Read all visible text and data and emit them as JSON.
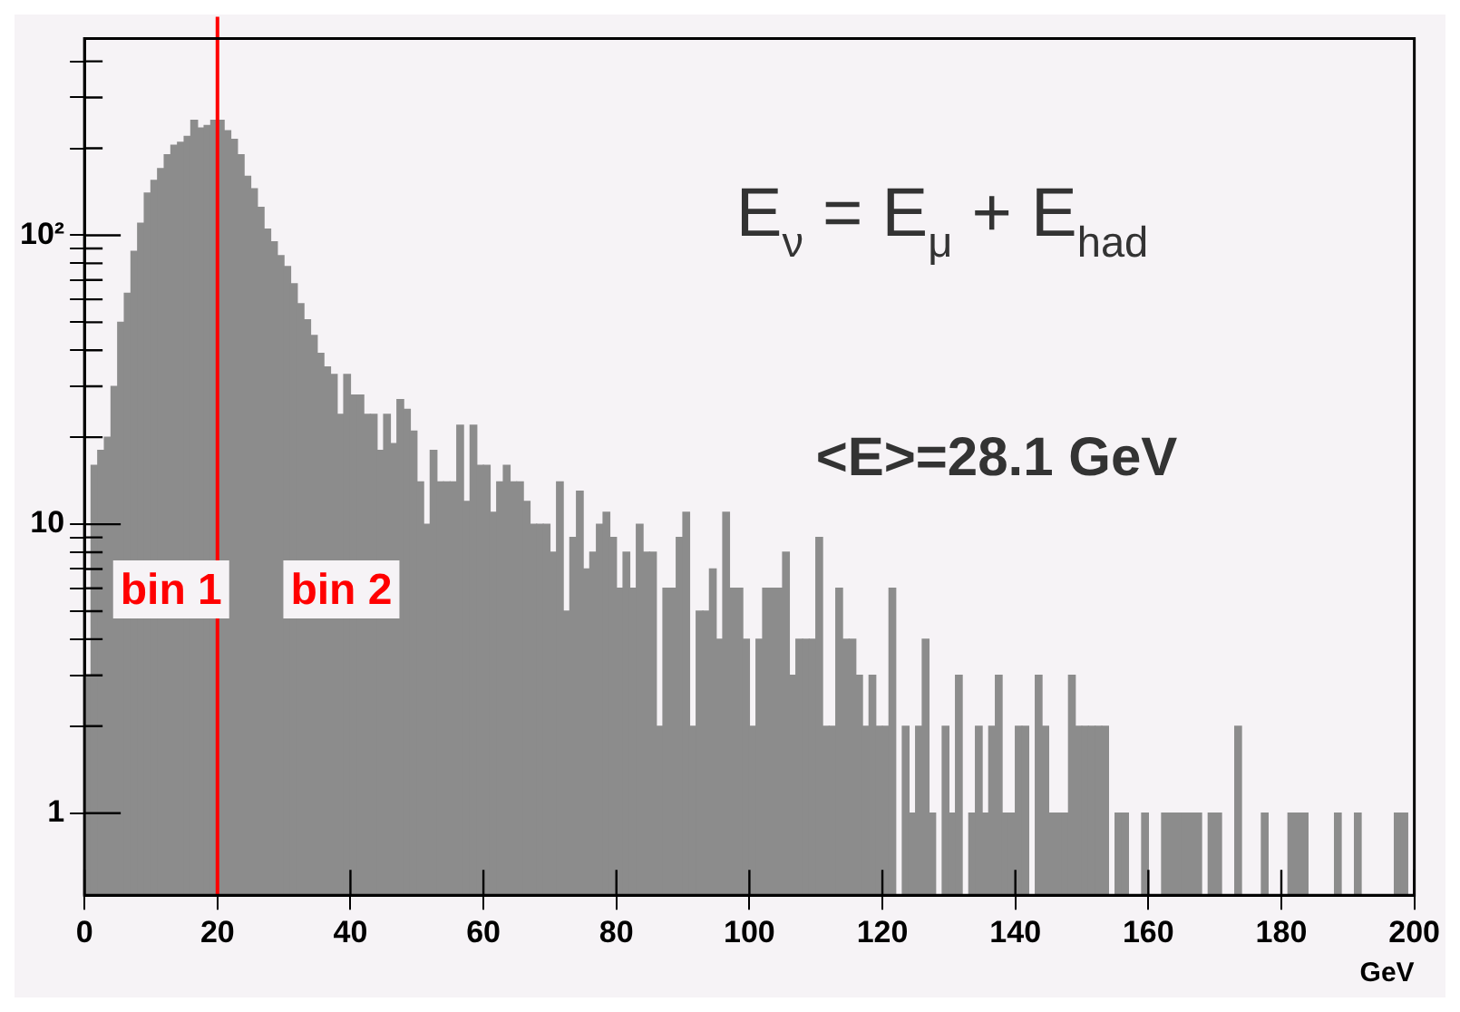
{
  "chart_data": {
    "type": "histogram",
    "xlabel": "GeV",
    "color": "#8c8c8c",
    "bins": [
      0,
      1,
      2,
      3,
      4,
      5,
      6,
      7,
      8,
      9,
      10,
      11,
      12,
      13,
      14,
      15,
      16,
      17,
      18,
      19,
      20,
      21,
      22,
      23,
      24,
      25,
      26,
      27,
      28,
      29,
      30,
      31,
      32,
      33,
      34,
      35,
      36,
      37,
      38,
      39,
      40,
      41,
      42,
      43,
      44,
      45,
      46,
      47,
      48,
      49,
      50,
      51,
      52,
      53,
      54,
      55,
      56,
      57,
      58,
      59,
      60,
      61,
      62,
      63,
      64,
      65,
      66,
      67,
      68,
      69,
      70,
      71,
      72,
      73,
      74,
      75,
      76,
      77,
      78,
      79,
      80,
      81,
      82,
      83,
      84,
      85,
      86,
      87,
      88,
      89,
      90,
      91,
      92,
      93,
      94,
      95,
      96,
      97,
      98,
      99,
      100,
      101,
      102,
      103,
      104,
      105,
      106,
      107,
      108,
      109,
      110,
      111,
      112,
      113,
      114,
      115,
      116,
      117,
      118,
      119,
      120,
      121,
      122,
      123,
      124,
      125,
      126,
      127,
      128,
      129,
      130,
      131,
      132,
      133,
      134,
      135,
      136,
      137,
      138,
      139,
      140,
      141,
      142,
      143,
      144,
      145,
      146,
      147,
      148,
      149,
      150,
      151,
      152,
      153,
      154,
      155,
      156,
      157,
      158,
      159,
      160,
      161,
      162,
      163,
      164,
      165,
      166,
      167,
      168,
      169,
      170,
      171,
      172,
      173,
      174,
      175,
      176,
      177,
      178,
      179,
      180,
      181,
      182,
      183,
      184,
      185,
      186,
      187,
      188,
      189,
      190,
      191,
      192,
      193,
      194,
      195,
      196,
      197,
      198,
      199,
      200
    ],
    "values": [
      3,
      16,
      18,
      20,
      30,
      50,
      63,
      88,
      110,
      140,
      155,
      170,
      190,
      205,
      210,
      220,
      250,
      235,
      240,
      250,
      250,
      230,
      215,
      190,
      160,
      145,
      125,
      105,
      95,
      85,
      78,
      68,
      58,
      51,
      45,
      39,
      35,
      33,
      24,
      33,
      28,
      28,
      24,
      24,
      18,
      24,
      19,
      27,
      25,
      21,
      14,
      10,
      18,
      14,
      14,
      14,
      22,
      12,
      22,
      16,
      16,
      11,
      14,
      16,
      14,
      14,
      12,
      10,
      10,
      10,
      8,
      14,
      5,
      9,
      13,
      7,
      8,
      10,
      11,
      9,
      6,
      8,
      6,
      10,
      8,
      8,
      2,
      6,
      6,
      9,
      11,
      2,
      5,
      5,
      7,
      4,
      11,
      6,
      6,
      4,
      2,
      4,
      6,
      6,
      6,
      8,
      3,
      4,
      4,
      4,
      9,
      2,
      2,
      6,
      4,
      4,
      3,
      2,
      3,
      2,
      2,
      6,
      null,
      2,
      1,
      2,
      4,
      1,
      null,
      2,
      1,
      3,
      null,
      1,
      2,
      1,
      2,
      3,
      1,
      1,
      2,
      2,
      null,
      3,
      2,
      1,
      1,
      1,
      3,
      2,
      2,
      2,
      2,
      2,
      null,
      1,
      1,
      null,
      null,
      1,
      null,
      null,
      1,
      1,
      1,
      1,
      1,
      1,
      null,
      1,
      1,
      null,
      null,
      2,
      null,
      null,
      null,
      1,
      null,
      null,
      null,
      1,
      1,
      1,
      null,
      null,
      null,
      null,
      1,
      null,
      null,
      1,
      null,
      null,
      null,
      null,
      null,
      1,
      1,
      null
    ],
    "xlim": [
      0,
      200
    ],
    "xticks": [
      0,
      20,
      40,
      60,
      80,
      100,
      120,
      140,
      160,
      180,
      200
    ],
    "log": "y",
    "ylim": [
      0.52,
      480
    ],
    "yticks": [
      1,
      {
        "value": 2,
        "label": null
      },
      {
        "value": 3,
        "label": null
      },
      {
        "value": 4,
        "label": null
      },
      {
        "value": 5,
        "label": null
      },
      {
        "value": 6,
        "label": null
      },
      {
        "value": 7,
        "label": null
      },
      {
        "value": 8,
        "label": null
      },
      {
        "value": 9,
        "label": null
      },
      10,
      {
        "value": 20,
        "label": null
      },
      {
        "value": 30,
        "label": null
      },
      {
        "value": 40,
        "label": null
      },
      {
        "value": 50,
        "label": null
      },
      {
        "value": 60,
        "label": null
      },
      {
        "value": 70,
        "label": null
      },
      {
        "value": 80,
        "label": null
      },
      {
        "value": 90,
        "label": null
      },
      {
        "value": 100,
        "label": "10²"
      },
      {
        "value": 200,
        "label": null
      },
      {
        "value": 300,
        "label": null
      },
      {
        "value": 400,
        "label": null
      }
    ],
    "ref_lines": [
      {
        "axis": "x",
        "value": 20,
        "color": "#ff0000"
      }
    ],
    "annotations": [
      "E$_{ν}$ = E$_{μ}$ + E$_{had}$",
      "<E>=28.1 GeV",
      "bin 1",
      "bin 2"
    ]
  }
}
